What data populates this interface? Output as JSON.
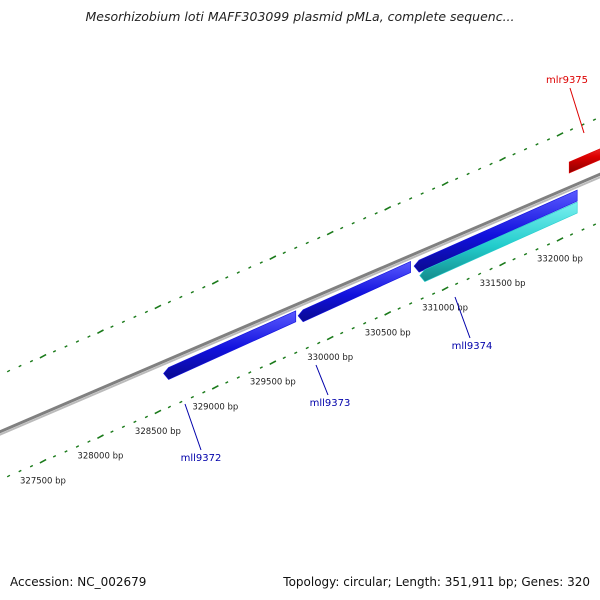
{
  "title": "Mesorhizobium loti MAFF303099 plasmid pMLa, complete sequenc...",
  "footer": {
    "accession": "Accession: NC_002679",
    "topology": "Topology: circular; Length: 351,911 bp; Genes: 320"
  },
  "colors": {
    "forward_gene": "#dd0000",
    "reverse_gene": "#1111dd",
    "selected_gene": "#22cccc",
    "backbone": "#888888",
    "tick": "#1a7a1a",
    "label_red": "#dd0000",
    "label_blue": "#0000aa"
  },
  "position_labels": [
    "327500 bp",
    "328000 bp",
    "328500 bp",
    "329000 bp",
    "329500 bp",
    "330000 bp",
    "330500 bp",
    "331000 bp",
    "331500 bp",
    "332000 bp"
  ],
  "genes": [
    {
      "name": "mll9372",
      "start": 328550,
      "end": 329700,
      "strand": "reverse",
      "color": "#1111dd"
    },
    {
      "name": "mll9373",
      "start": 329720,
      "end": 330700,
      "strand": "reverse",
      "color": "#1111dd"
    },
    {
      "name": "mll9374",
      "start": 330730,
      "end": 332150,
      "strand": "reverse",
      "color": "#1111dd"
    },
    {
      "name": "mll9374",
      "start": 330780,
      "end": 332150,
      "strand": "reverse",
      "color": "#22cccc"
    },
    {
      "name": "mlr9375",
      "start": 332080,
      "end": 332600,
      "strand": "forward",
      "color": "#dd0000"
    }
  ],
  "gene_labels": [
    {
      "text": "mll9372",
      "color": "#0000aa"
    },
    {
      "text": "mll9373",
      "color": "#0000aa"
    },
    {
      "text": "mll9374",
      "color": "#0000aa"
    },
    {
      "text": "mlr9375",
      "color": "#dd0000"
    }
  ]
}
